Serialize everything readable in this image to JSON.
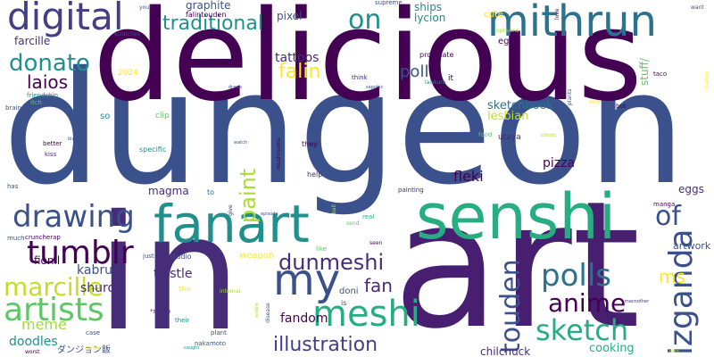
{
  "palette": {
    "dark_purple": "#440154",
    "purple": "#472c7a",
    "indigo": "#3b518b",
    "blue": "#2c718e",
    "teal": "#21908d",
    "green": "#27ad81",
    "light_green": "#5cc863",
    "yellow_green": "#aadc32",
    "yellow": "#fde725"
  },
  "words": [
    {
      "text": "dungeon",
      "color": "#3b518b",
      "rotate": false
    },
    {
      "text": "art",
      "color": "#481f70",
      "rotate": false
    },
    {
      "text": "delicious",
      "color": "#440154",
      "rotate": false
    },
    {
      "text": "in",
      "color": "#472c7a",
      "rotate": false
    },
    {
      "text": "senshi",
      "color": "#27ad81",
      "rotate": false
    },
    {
      "text": "fanart",
      "color": "#21908d",
      "rotate": false
    },
    {
      "text": "mithrun",
      "color": "#2c718e",
      "rotate": false
    },
    {
      "text": "digital",
      "color": "#433e85",
      "rotate": false
    },
    {
      "text": "my",
      "color": "#3b518b",
      "rotate": false
    },
    {
      "text": "artists",
      "color": "#5cc863",
      "rotate": false
    },
    {
      "text": "meshi",
      "color": "#27ad81",
      "rotate": false
    },
    {
      "text": "tumblr",
      "color": "#440154",
      "rotate": false
    },
    {
      "text": "drawing",
      "color": "#3b518b",
      "rotate": false
    },
    {
      "text": "marcille",
      "color": "#c2df23",
      "rotate": false
    },
    {
      "text": "anime",
      "color": "#440154",
      "rotate": false
    },
    {
      "text": "dunmeshi",
      "color": "#472c7a",
      "rotate": false
    },
    {
      "text": "izganda",
      "color": "#3b518b",
      "rotate": true
    },
    {
      "text": "polls",
      "color": "#2c718e",
      "rotate": false
    },
    {
      "text": "sketch",
      "color": "#27ad81",
      "rotate": false
    },
    {
      "text": "touden",
      "color": "#3b518b",
      "rotate": true
    },
    {
      "text": "illustration",
      "color": "#433e85",
      "rotate": false
    },
    {
      "text": "of",
      "color": "#3b518b",
      "rotate": false
    },
    {
      "text": "traditional",
      "color": "#21908d",
      "rotate": false
    },
    {
      "text": "donato",
      "color": "#21908d",
      "rotate": false
    },
    {
      "text": "on",
      "color": "#21908d",
      "rotate": false
    },
    {
      "text": "paint",
      "color": "#aadc32",
      "rotate": true
    },
    {
      "text": "falin",
      "color": "#fde725",
      "rotate": false
    },
    {
      "text": "poll",
      "color": "#3b518b",
      "rotate": false
    },
    {
      "text": "laios",
      "color": "#440154",
      "rotate": false
    },
    {
      "text": "fan",
      "color": "#472c7a",
      "rotate": false
    },
    {
      "text": "ms",
      "color": "#fde725",
      "rotate": false
    },
    {
      "text": "meme",
      "color": "#a0da39",
      "rotate": false
    },
    {
      "text": "fandom",
      "color": "#440154",
      "rotate": false
    },
    {
      "text": "kabru",
      "color": "#3b518b",
      "rotate": false
    },
    {
      "text": "shuro",
      "color": "#472c7a",
      "rotate": false
    },
    {
      "text": "thistle",
      "color": "#472c7a",
      "rotate": false
    },
    {
      "text": "fleki",
      "color": "#440154",
      "rotate": false
    },
    {
      "text": "pizza",
      "color": "#440154",
      "rotate": false
    },
    {
      "text": "cooking",
      "color": "#27ad81",
      "rotate": false
    },
    {
      "text": "chilchuck",
      "color": "#472c7a",
      "rotate": false
    },
    {
      "text": "doodles",
      "color": "#21908d",
      "rotate": false
    },
    {
      "text": "sketchbook",
      "color": "#2c718e",
      "rotate": false
    },
    {
      "text": "lesbian",
      "color": "#bddf26",
      "rotate": false
    },
    {
      "text": "magma",
      "color": "#472c7a",
      "rotate": false
    },
    {
      "text": "graphite",
      "color": "#3b518b",
      "rotate": false
    },
    {
      "text": "falintouden",
      "color": "#440154",
      "rotate": false
    },
    {
      "text": "tattoos",
      "color": "#472c7a",
      "rotate": false
    },
    {
      "text": "pixel",
      "color": "#3b518b",
      "rotate": false
    },
    {
      "text": "ships",
      "color": "#21908d",
      "rotate": false
    },
    {
      "text": "lycion",
      "color": "#21908d",
      "rotate": false
    },
    {
      "text": "farcille",
      "color": "#472c7a",
      "rotate": false
    },
    {
      "text": "fionil",
      "color": "#440154",
      "rotate": false
    },
    {
      "text": "eggs",
      "color": "#472c7a",
      "rotate": false
    },
    {
      "text": "egg",
      "color": "#440154",
      "rotate": false
    },
    {
      "text": "cute",
      "color": "#fde725",
      "rotate": false
    },
    {
      "text": "stuff/",
      "color": "#5cc863",
      "rotate": true
    },
    {
      "text": "artwork",
      "color": "#3b518b",
      "rotate": false
    },
    {
      "text": "procreate",
      "color": "#440154",
      "rotate": false
    },
    {
      "text": "it",
      "color": "#440154",
      "rotate": false
    },
    {
      "text": "supreme",
      "color": "#3b518b",
      "rotate": false
    },
    {
      "text": "your",
      "color": "#3b518b",
      "rotate": false
    },
    {
      "text": "scratches",
      "color": "#3b518b",
      "rotate": false
    },
    {
      "text": "friendship",
      "color": "#21908d",
      "rotate": false
    },
    {
      "text": "brain",
      "color": "#3b518b",
      "rotate": false
    },
    {
      "text": "itch",
      "color": "#5cc863",
      "rotate": false
    },
    {
      "text": "2024",
      "color": "#fde725",
      "rotate": false
    },
    {
      "text": "so",
      "color": "#21908d",
      "rotate": false
    },
    {
      "text": "clip",
      "color": "#5cc863",
      "rotate": false
    },
    {
      "text": "better",
      "color": "#440154",
      "rotate": false
    },
    {
      "text": "kiss",
      "color": "#472c7a",
      "rotate": false
    },
    {
      "text": "specific",
      "color": "#21908d",
      "rotate": false
    },
    {
      "text": "has",
      "color": "#3b518b",
      "rotate": false
    },
    {
      "text": "to",
      "color": "#2c718e",
      "rotate": false
    },
    {
      "text": "much",
      "color": "#3b518b",
      "rotate": false
    },
    {
      "text": "cruncherap",
      "color": "#440154",
      "rotate": false
    },
    {
      "text": "just",
      "color": "#3b518b",
      "rotate": false
    },
    {
      "text": "studio",
      "color": "#3b518b",
      "rotate": false
    },
    {
      "text": "weapon",
      "color": "#fde725",
      "rotate": false
    },
    {
      "text": "the",
      "color": "#fde725",
      "rotate": false
    },
    {
      "text": "*shuro",
      "color": "#472c7a",
      "rotate": false
    },
    {
      "text": "their",
      "color": "#21908d",
      "rotate": false
    },
    {
      "text": "case",
      "color": "#3b518b",
      "rotate": false
    },
    {
      "text": "plant",
      "color": "#3b518b",
      "rotate": false
    },
    {
      "text": "nakamoto",
      "color": "#3b518b",
      "rotate": false
    },
    {
      "text": "worst",
      "color": "#440154",
      "rotate": false
    },
    {
      "text": "ダンジョン飯",
      "color": "#3b518b",
      "rotate": false
    },
    {
      "text": "doni",
      "color": "#3b518b",
      "rotate": false
    },
    {
      "text": "is",
      "color": "#3b518b",
      "rotate": false
    },
    {
      "text": "help",
      "color": "#472c7a",
      "rotate": false
    },
    {
      "text": "they",
      "color": "#440154",
      "rotate": false
    },
    {
      "text": "painting",
      "color": "#472c7a",
      "rotate": false
    },
    {
      "text": "real",
      "color": "#27ad81",
      "rotate": false
    },
    {
      "text": "send",
      "color": "#5cc863",
      "rotate": false
    },
    {
      "text": "like",
      "color": "#5cc863",
      "rotate": false
    },
    {
      "text": "seen",
      "color": "#440154",
      "rotate": false
    },
    {
      "text": "utaya",
      "color": "#472c7a",
      "rotate": false
    },
    {
      "text": "manga",
      "color": "#440154",
      "rotate": false
    },
    {
      "text": "but",
      "color": "#440154",
      "rotate": false
    },
    {
      "text": "also",
      "color": "#3b518b",
      "rotate": false
    },
    {
      "text": "think",
      "color": "#472c7a",
      "rotate": false
    },
    {
      "text": "internal",
      "color": "#aadc32",
      "rotate": false
    },
    {
      "text": "disease",
      "color": "#3b518b",
      "rotate": true
    },
    {
      "text": "mushrooms",
      "color": "#440154",
      "rotate": true
    },
    {
      "text": "give",
      "color": "#472c7a",
      "rotate": true
    },
    {
      "text": "opinions",
      "color": "#aadc32",
      "rotate": false
    },
    {
      "text": "food",
      "color": "#5cc863",
      "rotate": false
    },
    {
      "text": "plants",
      "color": "#3b518b",
      "rotate": true
    },
    {
      "text": "taco",
      "color": "#440154",
      "rotate": false
    },
    {
      "text": "want",
      "color": "#3b518b",
      "rotate": false
    },
    {
      "text": "love",
      "color": "#440154",
      "rotate": true
    },
    {
      "text": "toshiro",
      "color": "#fde725",
      "rotate": true
    },
    {
      "text": "smiley",
      "color": "#440154",
      "rotate": false
    },
    {
      "text": "ever",
      "color": "#fde725",
      "rotate": false
    },
    {
      "text": "sapphic",
      "color": "#3b518b",
      "rotate": false
    },
    {
      "text": "laiskuro",
      "color": "#21908d",
      "rotate": false
    },
    {
      "text": "stilistic",
      "color": "#aadc32",
      "rotate": false
    },
    {
      "text": "watch",
      "color": "#3b518b",
      "rotate": false
    },
    {
      "text": "enable",
      "color": "#aadc32",
      "rotate": true
    },
    {
      "text": "ball",
      "color": "#aadc32",
      "rotate": true
    },
    {
      "text": "episode",
      "color": "#3b518b",
      "rotate": false
    },
    {
      "text": "macnother",
      "color": "#472c7a",
      "rotate": false
    },
    {
      "text": "kind",
      "color": "#aadc32",
      "rotate": false
    },
    {
      "text": "caught",
      "color": "#21908d",
      "rotate": false
    },
    {
      "text": "thisle",
      "color": "#fde725",
      "rotate": false
    },
    {
      "text": "blog",
      "color": "#3b518b",
      "rotate": false
    },
    {
      "text": "draws",
      "color": "#3b518b",
      "rotate": false
    }
  ]
}
